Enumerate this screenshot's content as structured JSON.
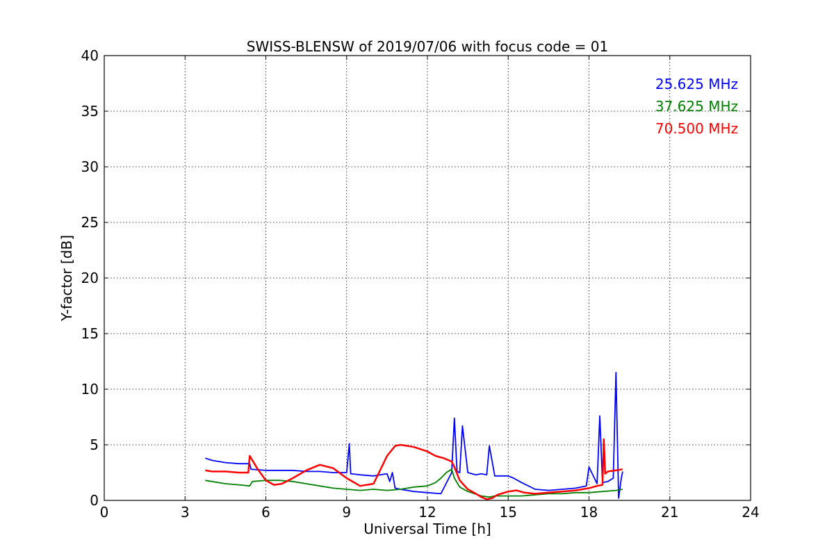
{
  "chart_data": {
    "type": "line",
    "title": "SWISS-BLENSW of 2019/07/06 with focus code = 01",
    "xlabel": "Universal Time [h]",
    "ylabel": "Y-factor [dB]",
    "xlim": [
      0,
      24
    ],
    "ylim": [
      0,
      40
    ],
    "xticks": [
      "0",
      "3",
      "6",
      "9",
      "12",
      "15",
      "18",
      "21",
      "24"
    ],
    "yticks": [
      "0",
      "5",
      "10",
      "15",
      "20",
      "25",
      "30",
      "35",
      "40"
    ],
    "grid": true,
    "legend_position": "top-right",
    "series": [
      {
        "name": "25.625 MHz",
        "color": "#0000ff",
        "x": [
          3.75,
          4.0,
          4.5,
          5.0,
          5.4,
          5.45,
          6.0,
          6.5,
          7.0,
          7.5,
          8.0,
          8.5,
          9.0,
          9.1,
          9.15,
          9.5,
          10.0,
          10.5,
          10.6,
          10.7,
          10.8,
          11.0,
          11.5,
          12.0,
          12.5,
          12.9,
          13.0,
          13.1,
          13.2,
          13.3,
          13.5,
          13.8,
          14.0,
          14.2,
          14.3,
          14.5,
          15.0,
          15.2,
          15.5,
          16.0,
          16.5,
          17.0,
          17.5,
          17.9,
          18.0,
          18.3,
          18.4,
          18.5,
          18.7,
          18.9,
          19.0,
          19.1,
          19.2,
          19.25
        ],
        "y": [
          3.8,
          3.6,
          3.4,
          3.3,
          3.3,
          2.8,
          2.7,
          2.7,
          2.7,
          2.6,
          2.6,
          2.5,
          2.5,
          5.1,
          2.4,
          2.3,
          2.2,
          2.4,
          1.7,
          2.5,
          1.1,
          1.0,
          0.8,
          0.7,
          0.6,
          2.5,
          7.4,
          2.6,
          2.5,
          6.7,
          2.5,
          2.3,
          2.4,
          2.3,
          4.9,
          2.2,
          2.2,
          2.0,
          1.6,
          1.0,
          0.9,
          1.0,
          1.1,
          1.3,
          3.0,
          1.5,
          7.6,
          1.6,
          1.7,
          2.0,
          11.5,
          0.2,
          2.0,
          2.6
        ]
      },
      {
        "name": "37.625 MHz",
        "color": "#008000",
        "x": [
          3.75,
          4.0,
          4.5,
          5.0,
          5.4,
          5.5,
          6.0,
          6.5,
          7.0,
          7.5,
          8.0,
          8.5,
          9.0,
          9.5,
          10.0,
          10.5,
          11.0,
          11.5,
          12.0,
          12.3,
          12.5,
          12.7,
          12.9,
          13.0,
          13.2,
          13.5,
          14.0,
          14.3,
          14.5,
          15.0,
          15.5,
          16.0,
          16.5,
          17.0,
          17.5,
          18.0,
          18.5,
          19.0,
          19.25
        ],
        "y": [
          1.8,
          1.7,
          1.5,
          1.4,
          1.3,
          1.7,
          1.8,
          1.8,
          1.7,
          1.5,
          1.3,
          1.1,
          1.0,
          0.9,
          1.0,
          0.9,
          1.0,
          1.2,
          1.3,
          1.6,
          2.0,
          2.5,
          2.8,
          2.0,
          1.2,
          0.8,
          0.4,
          0.3,
          0.4,
          0.4,
          0.4,
          0.5,
          0.6,
          0.6,
          0.7,
          0.7,
          0.8,
          0.9,
          1.0
        ]
      },
      {
        "name": "70.500 MHz",
        "color": "#ff0000",
        "x": [
          3.75,
          4.0,
          4.5,
          5.0,
          5.35,
          5.4,
          5.7,
          6.0,
          6.3,
          6.6,
          7.0,
          7.5,
          8.0,
          8.5,
          9.0,
          9.5,
          10.0,
          10.2,
          10.5,
          10.8,
          11.0,
          11.5,
          12.0,
          12.3,
          12.6,
          12.9,
          13.0,
          13.2,
          13.5,
          13.8,
          14.0,
          14.2,
          14.4,
          14.6,
          15.0,
          15.3,
          15.6,
          16.0,
          16.5,
          17.0,
          17.5,
          18.0,
          18.3,
          18.5,
          18.55,
          18.6,
          18.7,
          19.0,
          19.25
        ],
        "y": [
          2.7,
          2.6,
          2.6,
          2.5,
          2.5,
          4.0,
          2.8,
          1.8,
          1.4,
          1.5,
          2.0,
          2.7,
          3.2,
          2.9,
          2.0,
          1.3,
          1.5,
          2.5,
          4.0,
          4.9,
          5.0,
          4.8,
          4.4,
          4.0,
          3.8,
          3.5,
          3.0,
          1.8,
          1.0,
          0.6,
          0.3,
          0.1,
          0.2,
          0.5,
          0.8,
          0.9,
          0.7,
          0.6,
          0.7,
          0.8,
          0.9,
          1.1,
          1.3,
          1.4,
          5.5,
          2.4,
          2.6,
          2.7,
          2.8
        ]
      }
    ]
  }
}
